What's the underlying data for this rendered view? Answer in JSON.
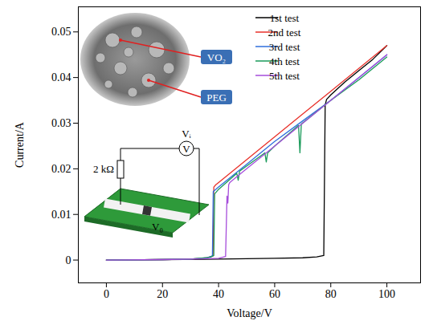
{
  "chart_data": {
    "type": "line",
    "x_label": "Voltage/V",
    "y_label": "Current/A",
    "xlim": [
      -10,
      112
    ],
    "ylim": [
      -0.005,
      0.0555
    ],
    "xticks": [
      0,
      20,
      40,
      60,
      80,
      100
    ],
    "yticks": [
      0,
      0.01,
      0.02,
      0.03,
      0.04,
      0.05
    ],
    "grid": false,
    "legend": "upper right",
    "series": [
      {
        "name": "1st test",
        "color": "#000000",
        "x": [
          0,
          20,
          40,
          60,
          70,
          75,
          77.5,
          78,
          78.5,
          80,
          85,
          90,
          95,
          100
        ],
        "values": [
          0,
          0.0001,
          0.0002,
          0.0004,
          0.0005,
          0.0007,
          0.001,
          0.034,
          0.0352,
          0.0362,
          0.039,
          0.0415,
          0.044,
          0.047
        ]
      },
      {
        "name": "2nd test",
        "color": "#e8312a",
        "x": [
          0,
          20,
          30,
          36,
          38,
          38.3,
          39,
          40,
          50,
          60,
          70,
          80,
          90,
          100
        ],
        "values": [
          0,
          0.0001,
          0.0002,
          0.0005,
          0.0009,
          0.016,
          0.0165,
          0.017,
          0.022,
          0.027,
          0.032,
          0.037,
          0.042,
          0.047
        ]
      },
      {
        "name": "3rd test",
        "color": "#2f6fdc",
        "x": [
          0,
          20,
          30,
          36,
          37.8,
          38.1,
          39,
          40,
          50,
          60,
          70,
          80,
          90,
          100
        ],
        "values": [
          0,
          0.0001,
          0.0002,
          0.0005,
          0.0009,
          0.015,
          0.0155,
          0.016,
          0.021,
          0.026,
          0.0305,
          0.035,
          0.04,
          0.045
        ]
      },
      {
        "name": "4th test",
        "color": "#1a9a5a",
        "x": [
          0,
          20,
          30,
          37,
          38.3,
          38.6,
          40,
          46.5,
          47,
          47.5,
          56.5,
          57,
          57.5,
          60,
          68.5,
          69,
          69.5,
          80,
          90,
          100
        ],
        "values": [
          0,
          0.0001,
          0.0002,
          0.0006,
          0.001,
          0.0145,
          0.0155,
          0.019,
          0.0175,
          0.0195,
          0.0235,
          0.0215,
          0.0235,
          0.025,
          0.0295,
          0.0235,
          0.0298,
          0.035,
          0.0395,
          0.0445
        ]
      },
      {
        "name": "5th test",
        "color": "#a64ddb",
        "x": [
          0,
          20,
          30,
          40,
          42.5,
          43,
          43.3,
          43.6,
          44,
          45,
          50,
          60,
          70,
          80,
          90,
          100
        ],
        "values": [
          0,
          0.0001,
          0.0002,
          0.0004,
          0.0008,
          0.014,
          0.0125,
          0.0165,
          0.017,
          0.0175,
          0.02,
          0.025,
          0.03,
          0.035,
          0.04,
          0.045
        ]
      }
    ],
    "annotations": [
      "VO₂",
      "PEG",
      "V",
      "Vᵢ",
      "2 kΩ",
      "V₀"
    ]
  }
}
